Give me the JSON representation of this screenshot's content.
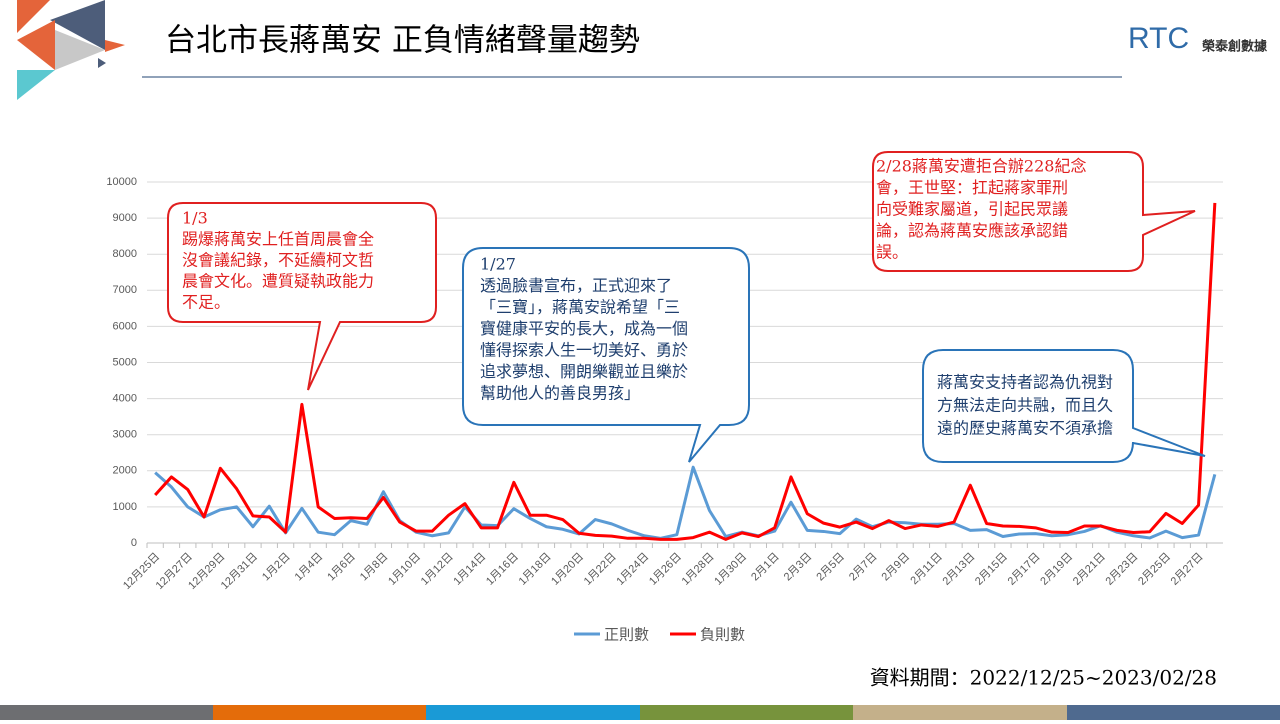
{
  "chart_data": {
    "type": "line",
    "title": "台北市長蔣萬安 正負情緒聲量趨勢",
    "logo": [
      "RTC",
      "榮泰創數據"
    ],
    "source": "資料期間：2022/12/25~2023/02/28",
    "categories": [
      "12月25日",
      null,
      "12月27日",
      null,
      "12月29日",
      null,
      "12月31日",
      null,
      "1月2日",
      null,
      "1月4日",
      null,
      "1月6日",
      null,
      "1月8日",
      null,
      "1月10日",
      null,
      "1月12日",
      null,
      "1月14日",
      null,
      "1月16日",
      null,
      "1月18日",
      null,
      "1月20日",
      null,
      "1月22日",
      null,
      "1月24日",
      null,
      "1月26日",
      null,
      "1月28日",
      null,
      "1月30日",
      null,
      "2月1日",
      null,
      "2月3日",
      null,
      "2月5日",
      null,
      "2月7日",
      null,
      "2月9日",
      null,
      "2月11日",
      null,
      "2月13日",
      null,
      "2月15日",
      null,
      "2月17日",
      null,
      "2月19日",
      null,
      "2月21日",
      null,
      "2月23日",
      null,
      "2月25日",
      null,
      "2月27日",
      null
    ],
    "series": [
      {
        "name": "正則數",
        "color": "#5b9bd5",
        "values": [
          1950,
          1550,
          1000,
          720,
          920,
          1000,
          450,
          1020,
          280,
          960,
          300,
          230,
          620,
          520,
          1420,
          620,
          300,
          200,
          280,
          1000,
          500,
          480,
          950,
          680,
          450,
          380,
          250,
          650,
          530,
          350,
          200,
          130,
          230,
          2100,
          900,
          180,
          300,
          200,
          330,
          1130,
          350,
          320,
          260,
          660,
          450,
          580,
          560,
          520,
          520,
          540,
          350,
          370,
          180,
          250,
          260,
          200,
          230,
          320,
          480,
          300,
          200,
          140,
          330,
          150,
          220,
          1900
        ]
      },
      {
        "name": "負則數",
        "color": "#ff0000",
        "values": [
          1330,
          1830,
          1480,
          720,
          2070,
          1500,
          750,
          720,
          300,
          3840,
          1000,
          680,
          700,
          680,
          1260,
          580,
          330,
          330,
          770,
          1090,
          420,
          420,
          1680,
          770,
          770,
          650,
          270,
          210,
          190,
          130,
          130,
          100,
          100,
          150,
          300,
          100,
          280,
          180,
          420,
          1830,
          810,
          550,
          440,
          580,
          400,
          620,
          400,
          500,
          460,
          580,
          1600,
          540,
          470,
          460,
          420,
          300,
          290,
          470,
          470,
          350,
          290,
          310,
          820,
          540,
          1050,
          9420
        ]
      }
    ],
    "ylim": [
      0,
      10000
    ],
    "yticks": [
      0,
      1000,
      2000,
      3000,
      4000,
      5000,
      6000,
      7000,
      8000,
      9000,
      10000
    ],
    "grid": true,
    "legend": "bottom",
    "annotations": [
      [
        "1/3",
        "踢爆蔣萬安上任首周晨會全",
        "沒會議紀錄，不延續柯文哲",
        "晨會文化。遭質疑執政能力",
        "不足。"
      ],
      [
        "1/27",
        "透過臉書宣布，正式迎來了",
        "「三寶」，蔣萬安說希望「三",
        "寶健康平安的長大，成為一個",
        "懂得探索人生一切美好、勇於",
        "追求夢想、開朗樂觀並且樂於",
        "幫助他人的善良男孩」"
      ],
      [
        "2/28蔣萬安遭拒合辦228紀念",
        "會，王世堅：扛起蔣家罪刑",
        "向受難家屬道，引起民眾議",
        "論，認為蔣萬安應該承認錯",
        "誤。"
      ],
      [
        "蔣萬安支持者認為仇視對",
        "方無法走向共融，而且久",
        "遠的歷史蔣萬安不須承擔"
      ]
    ]
  }
}
